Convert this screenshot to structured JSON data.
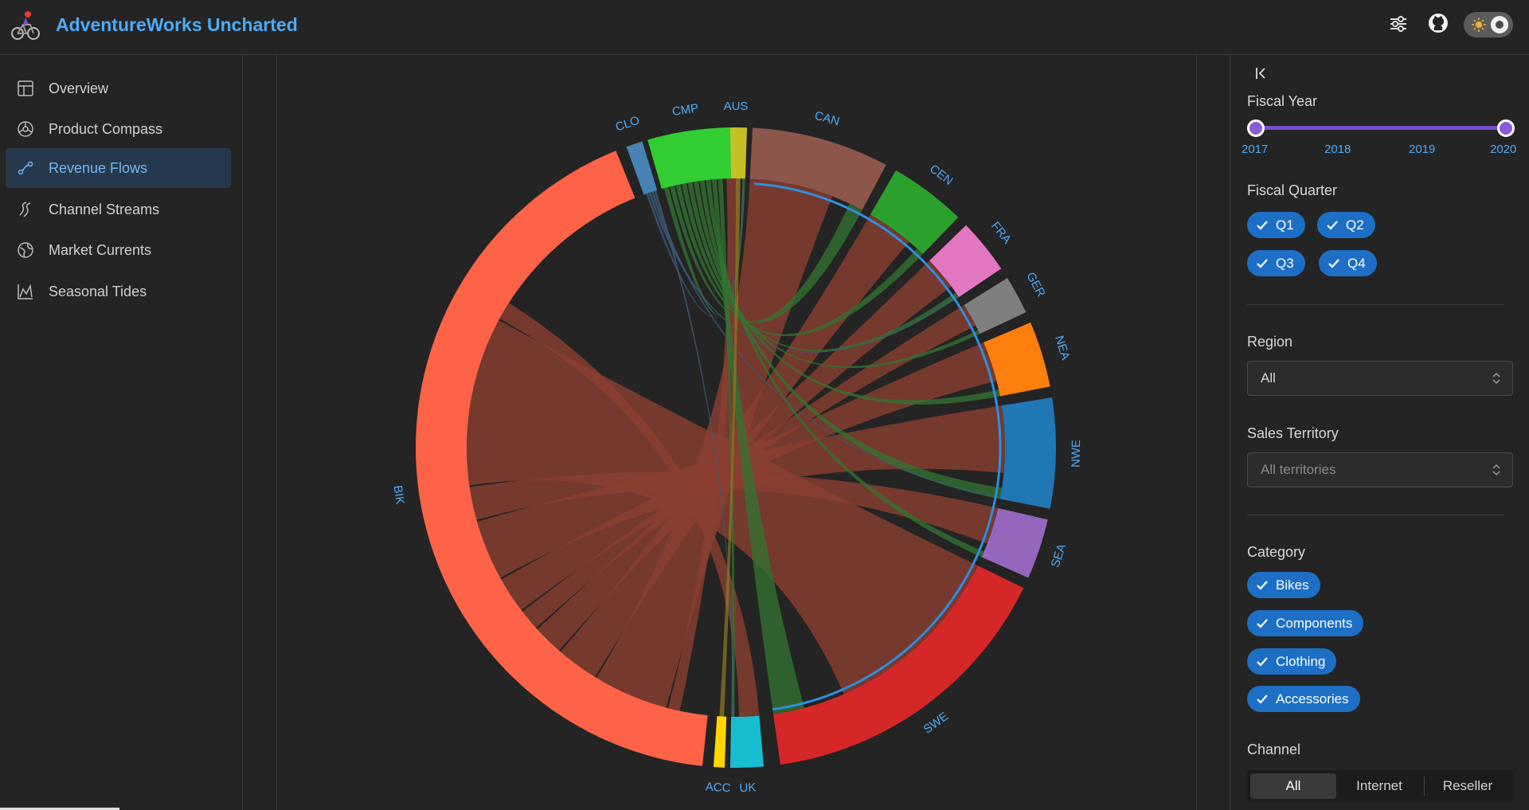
{
  "app": {
    "title": "AdventureWorks Uncharted"
  },
  "header": {
    "icons": [
      "sliders-icon",
      "github-icon",
      "theme-toggle-sun-icon"
    ]
  },
  "nav": {
    "items": [
      {
        "label": "Overview",
        "icon": "dashboard-icon",
        "active": false
      },
      {
        "label": "Product Compass",
        "icon": "compass-icon",
        "active": false
      },
      {
        "label": "Revenue Flows",
        "icon": "flow-icon",
        "active": true
      },
      {
        "label": "Channel Streams",
        "icon": "streams-icon",
        "active": false
      },
      {
        "label": "Market Currents",
        "icon": "globe-icon",
        "active": false
      },
      {
        "label": "Seasonal Tides",
        "icon": "area-chart-icon",
        "active": false
      }
    ]
  },
  "filters": {
    "fiscal_year": {
      "label": "Fiscal Year",
      "marks": [
        "2017",
        "2018",
        "2019",
        "2020"
      ],
      "range": [
        "2017",
        "2020"
      ]
    },
    "fiscal_quarter": {
      "label": "Fiscal Quarter",
      "options": [
        "Q1",
        "Q2",
        "Q3",
        "Q4"
      ]
    },
    "region": {
      "label": "Region",
      "value": "All"
    },
    "sales_territory": {
      "label": "Sales Territory",
      "placeholder": "All territories"
    },
    "category": {
      "label": "Category",
      "options": [
        "Bikes",
        "Components",
        "Clothing",
        "Accessories"
      ]
    },
    "channel": {
      "label": "Channel",
      "options": [
        "All",
        "Internet",
        "Reseller"
      ],
      "selected": "All"
    }
  },
  "chart_data": {
    "type": "chord",
    "groups": [
      {
        "label": "AUS",
        "color": "#c6c027"
      },
      {
        "label": "CAN",
        "color": "#8c564b"
      },
      {
        "label": "CEN",
        "color": "#2ca02c"
      },
      {
        "label": "FRA",
        "color": "#e377c2"
      },
      {
        "label": "GER",
        "color": "#7f7f7f"
      },
      {
        "label": "NEA",
        "color": "#ff7f0e"
      },
      {
        "label": "NWE",
        "color": "#1f77b4"
      },
      {
        "label": "SEA",
        "color": "#9467bd"
      },
      {
        "label": "SWE",
        "color": "#d62728"
      },
      {
        "label": "UK",
        "color": "#17becf"
      },
      {
        "label": "ACC",
        "color": "#ffd700"
      },
      {
        "label": "BIK",
        "color": "#ff6347"
      },
      {
        "label": "CLO",
        "color": "#4682b4"
      },
      {
        "label": "CMP",
        "color": "#32cd32"
      }
    ]
  }
}
